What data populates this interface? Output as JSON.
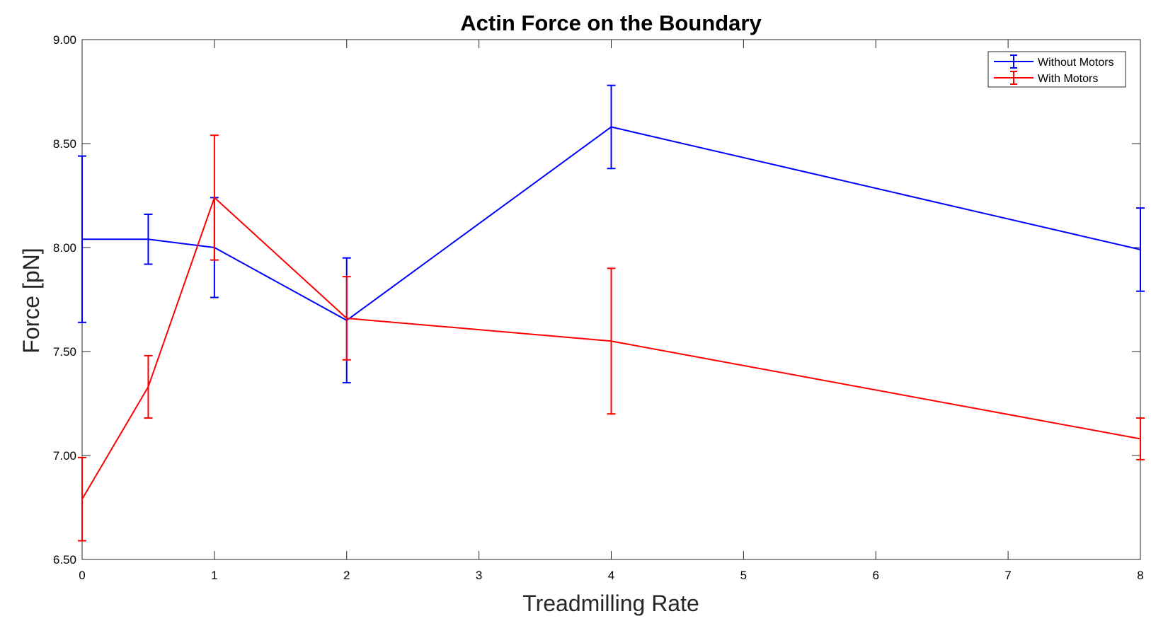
{
  "chart_data": {
    "type": "line",
    "title": "Actin Force on the Boundary",
    "xlabel": "Treadmilling Rate",
    "ylabel": "Force [pN]",
    "xlim": [
      0,
      8
    ],
    "ylim": [
      6.5,
      9.0
    ],
    "x_ticks": [
      "0",
      "1",
      "2",
      "3",
      "4",
      "5",
      "6",
      "7",
      "8"
    ],
    "y_ticks": [
      "6.50",
      "7.00",
      "7.50",
      "8.00",
      "8.50",
      "9.00"
    ],
    "grid": false,
    "legend_position": "top-right",
    "series": [
      {
        "name": "Without Motors",
        "color": "#0000ff",
        "x": [
          0,
          0.5,
          1,
          2,
          4,
          8
        ],
        "y": [
          8.04,
          8.04,
          8.0,
          7.65,
          8.58,
          7.99
        ],
        "err": [
          0.4,
          0.12,
          0.24,
          0.3,
          0.2,
          0.2
        ]
      },
      {
        "name": "With Motors",
        "color": "#ff0000",
        "x": [
          0,
          0.5,
          1,
          2,
          4,
          8
        ],
        "y": [
          6.79,
          7.33,
          8.24,
          7.66,
          7.55,
          7.08
        ],
        "err": [
          0.2,
          0.15,
          0.3,
          0.2,
          0.35,
          0.1
        ]
      }
    ]
  }
}
